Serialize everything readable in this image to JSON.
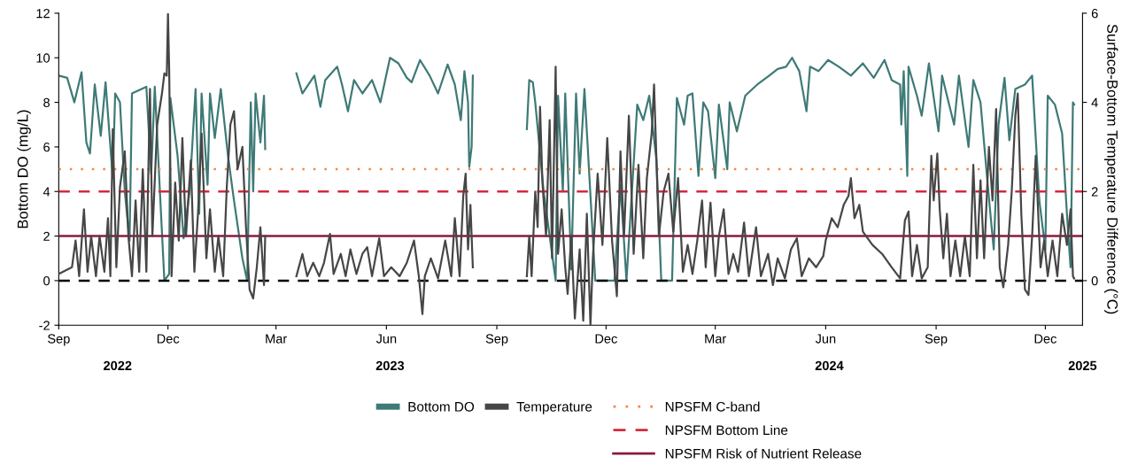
{
  "chart_data": {
    "type": "line",
    "xlabel": null,
    "ylabel": "Bottom DO (mg/L)",
    "y2label": "Surface-Bottom Temperature Difference (°C)",
    "xlim": [
      "2022-09-01",
      "2025-01-01"
    ],
    "xticks": [
      {
        "value": "2022-09-01",
        "label": "Sep"
      },
      {
        "value": "2022-12-01",
        "label": "Dec"
      },
      {
        "value": "2023-03-01",
        "label": "Mar"
      },
      {
        "value": "2023-06-01",
        "label": "Jun"
      },
      {
        "value": "2023-09-01",
        "label": "Sep"
      },
      {
        "value": "2023-12-01",
        "label": "Dec"
      },
      {
        "value": "2024-03-01",
        "label": "Mar"
      },
      {
        "value": "2024-06-01",
        "label": "Jun"
      },
      {
        "value": "2024-09-01",
        "label": "Sep"
      },
      {
        "value": "2024-12-01",
        "label": "Dec"
      }
    ],
    "x2lim": [
      "2022-09-01",
      "2025-01-01"
    ],
    "x2ticks": [
      {
        "value": "2022-10-20",
        "label": "2022"
      },
      {
        "value": "2023-06-04",
        "label": "2023"
      },
      {
        "value": "2024-06-04",
        "label": "2024"
      },
      {
        "value": "2025-01-01",
        "label": "2025"
      }
    ],
    "ylim": [
      -2,
      12
    ],
    "yticks": [
      -2,
      0,
      2,
      4,
      6,
      8,
      10,
      12
    ],
    "y2lim": [
      -1,
      6
    ],
    "y2ticks": [
      0,
      2,
      4,
      6
    ],
    "grid": false,
    "legend": "bottom",
    "marker": "none",
    "line_style": "solid",
    "series": [
      {
        "name": "Bottom DO",
        "color": "#3e7a77",
        "x": [
          "2022-09-01",
          "2022-09-08",
          "2022-09-14",
          "2022-09-20",
          "2022-09-24",
          "2022-09-27",
          "2022-10-01",
          "2022-10-06",
          "2022-10-10",
          "2022-10-16",
          "2022-10-18",
          "2022-10-22",
          "2022-10-26",
          "2022-10-30",
          "2022-11-01",
          "2022-11-13",
          "2022-11-17",
          "2022-11-20",
          "2022-11-24",
          "2022-11-28",
          "2022-12-02",
          "2022-12-03",
          "2022-12-09",
          "2022-12-14",
          "2022-12-19",
          "2022-12-24",
          "2022-12-27",
          "2022-12-29",
          "2023-01-03",
          "2023-01-05",
          "2023-01-09",
          "2023-01-14",
          "2023-01-20",
          "2023-01-25",
          "2023-02-01",
          "2023-02-05",
          "2023-02-08",
          "2023-02-10",
          "2023-02-12",
          "2023-02-16",
          "2023-02-19",
          "2023-02-20",
          "2023-03-01",
          "2023-03-18",
          "2023-03-23",
          "2023-04-02",
          "2023-04-07",
          "2023-04-11",
          "2023-04-21",
          "2023-04-25",
          "2023-04-30",
          "2023-05-05",
          "2023-05-12",
          "2023-05-20",
          "2023-05-27",
          "2023-06-04",
          "2023-06-11",
          "2023-06-18",
          "2023-06-22",
          "2023-06-29",
          "2023-07-07",
          "2023-07-14",
          "2023-07-22",
          "2023-07-28",
          "2023-08-02",
          "2023-08-05",
          "2023-08-08",
          "2023-08-09",
          "2023-08-11",
          "2023-08-12",
          "2023-09-01",
          "2023-09-26",
          "2023-09-28",
          "2023-10-01",
          "2023-10-03",
          "2023-10-10",
          "2023-10-20",
          "2023-10-22",
          "2023-10-26",
          "2023-10-28",
          "2023-11-02",
          "2023-11-06",
          "2023-11-09",
          "2023-11-13",
          "2023-11-22",
          "2023-12-08",
          "2023-12-13",
          "2023-12-18",
          "2023-12-27",
          "2024-01-01",
          "2024-01-06",
          "2024-01-12",
          "2024-01-16",
          "2024-01-25",
          "2024-01-29",
          "2024-02-04",
          "2024-02-07",
          "2024-02-11",
          "2024-02-16",
          "2024-02-20",
          "2024-02-24",
          "2024-03-01",
          "2024-03-04",
          "2024-03-11",
          "2024-03-13",
          "2024-03-19",
          "2024-03-26",
          "2024-04-05",
          "2024-04-15",
          "2024-04-22",
          "2024-04-29",
          "2024-05-04",
          "2024-05-10",
          "2024-05-16",
          "2024-05-19",
          "2024-05-26",
          "2024-06-03",
          "2024-06-12",
          "2024-06-22",
          "2024-07-02",
          "2024-07-11",
          "2024-07-20",
          "2024-07-26",
          "2024-08-02",
          "2024-08-03",
          "2024-08-05",
          "2024-08-08",
          "2024-08-09",
          "2024-08-16",
          "2024-08-20",
          "2024-08-26",
          "2024-09-03",
          "2024-09-06",
          "2024-09-10",
          "2024-09-16",
          "2024-09-20",
          "2024-09-28",
          "2024-10-02",
          "2024-10-08",
          "2024-10-14",
          "2024-10-19",
          "2024-10-23",
          "2024-10-28",
          "2024-11-01",
          "2024-11-06",
          "2024-11-14",
          "2024-11-20",
          "2024-11-26",
          "2024-12-01",
          "2024-12-03",
          "2024-12-09",
          "2024-12-15",
          "2024-12-19",
          "2024-12-22",
          "2024-12-24",
          "2024-12-25"
        ],
        "values": [
          9.2,
          9.1,
          8.0,
          9.35,
          6.2,
          5.7,
          8.8,
          6.5,
          8.9,
          4.6,
          8.4,
          8.0,
          4.0,
          1.8,
          8.4,
          8.7,
          4.8,
          8.7,
          4.3,
          0.0,
          0.3,
          8.2,
          5.6,
          1.9,
          4.0,
          8.6,
          3.0,
          8.4,
          4.3,
          8.4,
          6.4,
          8.6,
          5.6,
          3.6,
          1.0,
          0.0,
          8.0,
          4.0,
          8.4,
          6.2,
          8.3,
          5.9,
          null,
          9.3,
          8.4,
          9.2,
          7.8,
          9.0,
          9.6,
          8.8,
          7.6,
          9.0,
          8.4,
          9.0,
          8.0,
          10.0,
          9.75,
          9.1,
          8.9,
          9.9,
          9.2,
          8.4,
          9.7,
          8.8,
          7.2,
          9.4,
          8.0,
          5.1,
          6.0,
          9.2,
          null,
          6.8,
          9.0,
          8.9,
          8.0,
          4.0,
          0.0,
          8.3,
          4.0,
          8.4,
          0.5,
          8.4,
          4.8,
          8.6,
          0.0,
          0.0,
          4.3,
          0.0,
          7.9,
          7.2,
          8.3,
          5.4,
          0.0,
          0.0,
          8.2,
          7.0,
          8.3,
          8.4,
          4.7,
          8.0,
          7.6,
          4.6,
          7.9,
          5.0,
          8.0,
          6.7,
          8.3,
          8.8,
          9.2,
          9.5,
          9.6,
          10.0,
          9.4,
          7.6,
          9.6,
          9.4,
          9.9,
          9.6,
          9.2,
          9.75,
          9.1,
          9.9,
          9.0,
          8.8,
          7.0,
          9.4,
          4.7,
          9.6,
          8.3,
          7.4,
          9.75,
          6.7,
          9.2,
          8.3,
          7.0,
          9.2,
          6.0,
          9.0,
          8.0,
          4.3,
          1.4,
          7.0,
          9.1,
          6.3,
          8.6,
          8.8,
          9.2,
          3.6,
          1.4,
          8.3,
          7.9,
          6.6,
          3.0,
          0.6,
          8.0,
          7.9
        ]
      },
      {
        "name": "Temperature",
        "color": "#464646",
        "axis": "y2",
        "x": [
          "2022-09-01",
          "2022-09-12",
          "2022-09-15",
          "2022-09-18",
          "2022-09-22",
          "2022-09-25",
          "2022-09-28",
          "2022-10-02",
          "2022-10-05",
          "2022-10-09",
          "2022-10-12",
          "2022-10-14",
          "2022-10-16",
          "2022-10-19",
          "2022-10-22",
          "2022-10-26",
          "2022-10-29",
          "2022-11-01",
          "2022-11-04",
          "2022-11-07",
          "2022-11-10",
          "2022-11-13",
          "2022-11-16",
          "2022-11-18",
          "2022-11-22",
          "2022-11-26",
          "2022-11-28",
          "2022-11-30",
          "2022-12-01",
          "2022-12-02",
          "2022-12-04",
          "2022-12-07",
          "2022-12-10",
          "2022-12-13",
          "2022-12-16",
          "2022-12-20",
          "2022-12-23",
          "2022-12-26",
          "2022-12-29",
          "2023-01-02",
          "2023-01-05",
          "2023-01-09",
          "2023-01-12",
          "2023-01-16",
          "2023-01-19",
          "2023-01-22",
          "2023-01-25",
          "2023-01-28",
          "2023-02-01",
          "2023-02-04",
          "2023-02-07",
          "2023-02-10",
          "2023-02-13",
          "2023-02-16",
          "2023-02-19",
          "2023-02-20",
          "2023-03-01",
          "2023-03-18",
          "2023-03-23",
          "2023-03-27",
          "2023-04-01",
          "2023-04-06",
          "2023-04-10",
          "2023-04-15",
          "2023-04-18",
          "2023-04-24",
          "2023-04-28",
          "2023-05-02",
          "2023-05-07",
          "2023-05-12",
          "2023-05-16",
          "2023-05-20",
          "2023-05-26",
          "2023-05-30",
          "2023-06-05",
          "2023-06-12",
          "2023-06-18",
          "2023-06-24",
          "2023-06-28",
          "2023-07-01",
          "2023-07-03",
          "2023-07-08",
          "2023-07-14",
          "2023-07-20",
          "2023-07-25",
          "2023-07-28",
          "2023-08-01",
          "2023-08-04",
          "2023-08-06",
          "2023-08-08",
          "2023-08-10",
          "2023-08-12",
          "2023-09-01",
          "2023-09-26",
          "2023-09-28",
          "2023-09-30",
          "2023-10-03",
          "2023-10-05",
          "2023-10-07",
          "2023-10-09",
          "2023-10-12",
          "2023-10-15",
          "2023-10-17",
          "2023-10-20",
          "2023-10-22",
          "2023-10-25",
          "2023-10-28",
          "2023-10-30",
          "2023-11-02",
          "2023-11-05",
          "2023-11-09",
          "2023-11-12",
          "2023-11-15",
          "2023-11-18",
          "2023-11-20",
          "2023-11-24",
          "2023-11-28",
          "2023-12-02",
          "2023-12-06",
          "2023-12-10",
          "2023-12-13",
          "2023-12-16",
          "2023-12-20",
          "2023-12-24",
          "2023-12-28",
          "2024-01-01",
          "2024-01-04",
          "2024-01-08",
          "2024-01-10",
          "2024-01-14",
          "2024-01-18",
          "2024-01-22",
          "2024-01-26",
          "2024-01-30",
          "2024-02-03",
          "2024-02-07",
          "2024-02-11",
          "2024-02-15",
          "2024-02-19",
          "2024-02-22",
          "2024-02-26",
          "2024-03-01",
          "2024-03-04",
          "2024-03-08",
          "2024-03-12",
          "2024-03-16",
          "2024-03-20",
          "2024-03-25",
          "2024-03-29",
          "2024-04-04",
          "2024-04-08",
          "2024-04-14",
          "2024-04-18",
          "2024-04-22",
          "2024-04-28",
          "2024-05-03",
          "2024-05-08",
          "2024-05-12",
          "2024-05-18",
          "2024-05-24",
          "2024-05-30",
          "2024-06-01",
          "2024-06-06",
          "2024-06-11",
          "2024-06-16",
          "2024-06-20",
          "2024-06-22",
          "2024-06-25",
          "2024-06-29",
          "2024-07-02",
          "2024-07-10",
          "2024-07-18",
          "2024-07-26",
          "2024-08-02",
          "2024-08-06",
          "2024-08-09",
          "2024-08-12",
          "2024-08-16",
          "2024-08-20",
          "2024-08-25",
          "2024-08-28",
          "2024-08-30",
          "2024-09-02",
          "2024-09-04",
          "2024-09-07",
          "2024-09-10",
          "2024-09-13",
          "2024-09-17",
          "2024-09-21",
          "2024-09-25",
          "2024-09-29",
          "2024-10-02",
          "2024-10-05",
          "2024-10-08",
          "2024-10-11",
          "2024-10-15",
          "2024-10-18",
          "2024-10-21",
          "2024-10-24",
          "2024-10-27",
          "2024-10-31",
          "2024-11-03",
          "2024-11-06",
          "2024-11-08",
          "2024-11-11",
          "2024-11-14",
          "2024-11-17",
          "2024-11-20",
          "2024-11-23",
          "2024-11-27",
          "2024-11-30",
          "2024-12-03",
          "2024-12-07",
          "2024-12-11",
          "2024-12-15",
          "2024-12-19",
          "2024-12-22",
          "2024-12-24",
          "2024-12-25"
        ],
        "values": [
          0.15,
          0.3,
          0.9,
          0.1,
          1.6,
          0.2,
          1.0,
          0.1,
          1.0,
          0.2,
          1.4,
          0.1,
          3.4,
          0.3,
          2.1,
          2.9,
          1.0,
          0.1,
          1.8,
          0.2,
          2.5,
          0.2,
          4.3,
          1.0,
          3.5,
          4.2,
          4.65,
          4.6,
          6.0,
          4.75,
          0.1,
          2.2,
          0.9,
          3.2,
          1.0,
          2.7,
          0.2,
          1.5,
          3.3,
          0.5,
          1.6,
          0.2,
          1.0,
          0.1,
          2.1,
          3.5,
          3.8,
          2.5,
          3.0,
          1.2,
          -0.2,
          -0.4,
          0.3,
          1.2,
          -0.1,
          1.0,
          null,
          0.1,
          0.6,
          0.1,
          0.4,
          0.1,
          0.4,
          1.05,
          0.15,
          0.6,
          0.1,
          0.7,
          0.15,
          0.6,
          0.75,
          0.1,
          0.95,
          0.1,
          0.3,
          0.1,
          0.4,
          0.9,
          0.1,
          -0.75,
          0.1,
          0.5,
          0.05,
          0.9,
          0.1,
          1.4,
          0.1,
          1.9,
          2.4,
          0.7,
          1.7,
          0.3,
          null,
          0.1,
          1.0,
          0.1,
          2.0,
          1.2,
          3.9,
          2.2,
          1.0,
          3.6,
          0.5,
          4.8,
          0.6,
          1.6,
          0.3,
          -0.3,
          1.0,
          -0.85,
          0.7,
          -0.9,
          1.5,
          -1.0,
          0.5,
          2.4,
          0.8,
          3.2,
          0.9,
          -0.35,
          2.9,
          1.0,
          3.7,
          0.6,
          2.6,
          0.5,
          2.3,
          3.3,
          4.4,
          1.0,
          2.0,
          2.4,
          1.1,
          2.3,
          0.2,
          0.8,
          0.15,
          0.9,
          1.8,
          0.3,
          1.75,
          0.1,
          1.0,
          1.6,
          0.15,
          0.6,
          0.2,
          1.3,
          0.1,
          1.2,
          0.1,
          0.6,
          -0.1,
          0.5,
          0.05,
          0.7,
          0.95,
          0.1,
          0.5,
          0.3,
          0.55,
          0.9,
          1.4,
          1.2,
          1.7,
          1.9,
          2.3,
          1.4,
          1.7,
          1.1,
          0.8,
          0.6,
          0.3,
          0.05,
          1.35,
          1.55,
          0.1,
          0.8,
          0.05,
          0.3,
          2.8,
          1.8,
          2.85,
          1.6,
          0.5,
          1.5,
          0.1,
          0.9,
          0.1,
          1.0,
          0.1,
          2.6,
          0.5,
          2.25,
          0.5,
          3.0,
          1.8,
          3.85,
          0.3,
          -0.15,
          0.8,
          2.0,
          3.7,
          4.2,
          1.5,
          -0.2,
          -0.32,
          1.0,
          2.8,
          0.3,
          0.9,
          0.1,
          0.9,
          0.1,
          1.5,
          0.8,
          1.6,
          0.1,
          0.05
        ]
      }
    ],
    "ref_lines": [
      {
        "axis": "y",
        "value": 5,
        "label": "NPSFM C-band",
        "color": "#f0874a",
        "line_style": "dotted"
      },
      {
        "axis": "y",
        "value": 4,
        "label": "NPSFM Bottom Line",
        "color": "#d42a3c",
        "line_style": "dashed"
      },
      {
        "axis": "y",
        "value": 2,
        "label": "NPSFM Risk of Nutrient Release",
        "color": "#8b1a3e",
        "line_style": "solid"
      },
      {
        "axis": "y",
        "value": 0,
        "label": null,
        "color": "#000000",
        "line_style": "dashed"
      }
    ]
  }
}
